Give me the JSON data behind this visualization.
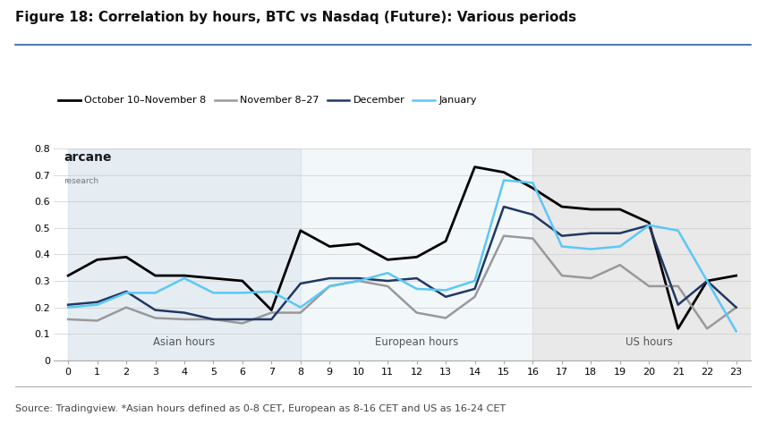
{
  "title": "Figure 18: Correlation by hours, BTC vs Nasdaq (Future): Various periods",
  "source": "Source: Tradingview. *Asian hours defined as 0-8 CET, European as 8-16 CET and US as 16-24 CET",
  "x": [
    0,
    1,
    2,
    3,
    4,
    5,
    6,
    7,
    8,
    9,
    10,
    11,
    12,
    13,
    14,
    15,
    16,
    17,
    18,
    19,
    20,
    21,
    22,
    23
  ],
  "series": {
    "october": {
      "label": "October 10–November 8",
      "color": "#000000",
      "linewidth": 2.0,
      "values": [
        0.32,
        0.38,
        0.39,
        0.32,
        0.32,
        0.31,
        0.3,
        0.19,
        0.49,
        0.43,
        0.44,
        0.38,
        0.39,
        0.45,
        0.73,
        0.71,
        0.65,
        0.58,
        0.57,
        0.57,
        0.52,
        0.12,
        0.3,
        0.32
      ]
    },
    "november": {
      "label": "November 8–27",
      "color": "#999999",
      "linewidth": 1.8,
      "values": [
        0.155,
        0.15,
        0.2,
        0.16,
        0.155,
        0.155,
        0.14,
        0.18,
        0.18,
        0.28,
        0.3,
        0.28,
        0.18,
        0.16,
        0.24,
        0.47,
        0.46,
        0.32,
        0.31,
        0.36,
        0.28,
        0.28,
        0.12,
        0.2
      ]
    },
    "december": {
      "label": "December",
      "color": "#1f3864",
      "linewidth": 1.8,
      "values": [
        0.21,
        0.22,
        0.26,
        0.19,
        0.18,
        0.155,
        0.155,
        0.155,
        0.29,
        0.31,
        0.31,
        0.3,
        0.31,
        0.24,
        0.27,
        0.58,
        0.55,
        0.47,
        0.48,
        0.48,
        0.51,
        0.21,
        0.3,
        0.2
      ]
    },
    "january": {
      "label": "January",
      "color": "#5bc8f5",
      "linewidth": 1.8,
      "values": [
        0.2,
        0.21,
        0.255,
        0.255,
        0.31,
        0.255,
        0.255,
        0.26,
        0.2,
        0.28,
        0.3,
        0.33,
        0.27,
        0.265,
        0.3,
        0.68,
        0.67,
        0.43,
        0.42,
        0.43,
        0.51,
        0.49,
        0.3,
        0.11
      ]
    }
  },
  "regions": [
    {
      "xmin": 0,
      "xmax": 8,
      "label": "Asian hours",
      "color": "#ccdce8",
      "alpha": 0.5
    },
    {
      "xmin": 8,
      "xmax": 16,
      "label": "European hours",
      "color": "#dce9f3",
      "alpha": 0.35
    },
    {
      "xmin": 16,
      "xmax": 24,
      "label": "US hours",
      "color": "#d8d8d8",
      "alpha": 0.55
    }
  ],
  "ylim": [
    0,
    0.8
  ],
  "yticks": [
    0,
    0.1,
    0.2,
    0.3,
    0.4,
    0.5,
    0.6,
    0.7,
    0.8
  ],
  "xticks": [
    0,
    1,
    2,
    3,
    4,
    5,
    6,
    7,
    8,
    9,
    10,
    11,
    12,
    13,
    14,
    15,
    16,
    17,
    18,
    19,
    20,
    21,
    22,
    23
  ],
  "background_color": "#ffffff",
  "title_fontsize": 11,
  "source_fontsize": 8,
  "arcane_text": "arcane",
  "arcane_research": "research",
  "title_bar_color": "#2e5fa3"
}
